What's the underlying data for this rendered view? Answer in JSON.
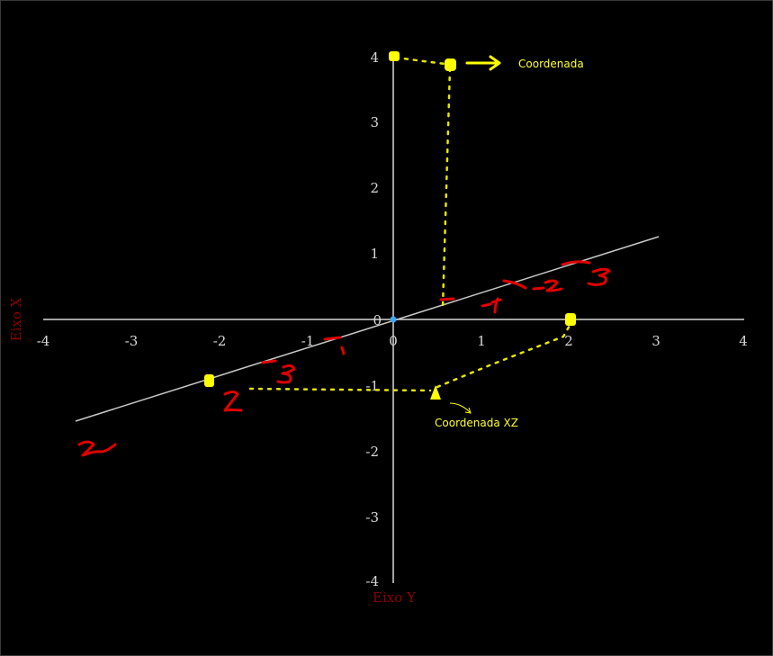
{
  "axes": {
    "x_axis_label": "Eixo X",
    "y_axis_label": "Eixo Y",
    "horizontal_ticks": [
      "-4",
      "-3",
      "-2",
      "-1",
      "0",
      "1",
      "2",
      "3",
      "4"
    ],
    "vertical_ticks": [
      "4",
      "3",
      "2",
      "1",
      "0",
      "-1",
      "-2",
      "-3",
      "-4"
    ]
  },
  "annotations": {
    "coordinate_label": "Coordenada",
    "coordinate_xz_label": "Coordenada XZ"
  },
  "colors": {
    "background": "#000000",
    "axis": "#d8d8d8",
    "ink_yellow": "#ffff00",
    "ink_red": "#e00000",
    "axis_label": "#8b0000",
    "origin": "#3fa9f5"
  }
}
